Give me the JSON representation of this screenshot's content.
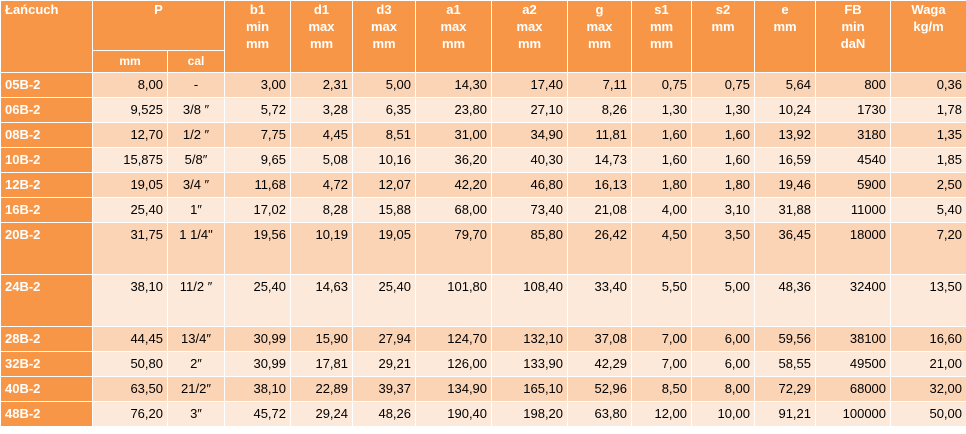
{
  "headers": {
    "chain": "Łańcuch",
    "p": "P",
    "p_mm": "mm",
    "p_cal": "cal",
    "cols": [
      [
        "b1",
        "min",
        "mm"
      ],
      [
        "d1",
        "max",
        "mm"
      ],
      [
        "d3",
        "max",
        "mm"
      ],
      [
        "a1",
        "max",
        "mm"
      ],
      [
        "a2",
        "max",
        "mm"
      ],
      [
        "g",
        "max",
        "mm"
      ],
      [
        "s1",
        "mm",
        "mm"
      ],
      [
        "s2",
        "mm"
      ],
      [
        "e",
        "mm"
      ],
      [
        "FB",
        "min",
        "daN"
      ],
      [
        "Waga",
        "kg/m"
      ]
    ]
  },
  "rows": [
    {
      "chain": "05B-2",
      "p_mm": "8,00",
      "p_cal": "-",
      "b1": "3,00",
      "d1": "2,31",
      "d3": "5,00",
      "a1": "14,30",
      "a2": "17,40",
      "g": "7,11",
      "s1": "0,75",
      "s2": "0,75",
      "e": "5,64",
      "fb": "800",
      "waga": "0,36"
    },
    {
      "chain": "06B-2",
      "p_mm": "9,525",
      "p_cal": "3/8 ″",
      "b1": "5,72",
      "d1": "3,28",
      "d3": "6,35",
      "a1": "23,80",
      "a2": "27,10",
      "g": "8,26",
      "s1": "1,30",
      "s2": "1,30",
      "e": "10,24",
      "fb": "1730",
      "waga": "1,78"
    },
    {
      "chain": "08B-2",
      "p_mm": "12,70",
      "p_cal": "1/2 ″",
      "b1": "7,75",
      "d1": "4,45",
      "d3": "8,51",
      "a1": "31,00",
      "a2": "34,90",
      "g": "11,81",
      "s1": "1,60",
      "s2": "1,60",
      "e": "13,92",
      "fb": "3180",
      "waga": "1,35"
    },
    {
      "chain": "10B-2",
      "p_mm": "15,875",
      "p_cal": "5/8″",
      "b1": "9,65",
      "d1": "5,08",
      "d3": "10,16",
      "a1": "36,20",
      "a2": "40,30",
      "g": "14,73",
      "s1": "1,60",
      "s2": "1,60",
      "e": "16,59",
      "fb": "4540",
      "waga": "1,85"
    },
    {
      "chain": "12B-2",
      "p_mm": "19,05",
      "p_cal": "3/4 ″",
      "b1": "11,68",
      "d1": "4,72",
      "d3": "12,07",
      "a1": "42,20",
      "a2": "46,80",
      "g": "16,13",
      "s1": "1,80",
      "s2": "1,80",
      "e": "19,46",
      "fb": "5900",
      "waga": "2,50"
    },
    {
      "chain": "16B-2",
      "p_mm": "25,40",
      "p_cal": "1″",
      "b1": "17,02",
      "d1": "8,28",
      "d3": "15,88",
      "a1": "68,00",
      "a2": "73,40",
      "g": "21,08",
      "s1": "4,00",
      "s2": "3,10",
      "e": "31,88",
      "fb": "11000",
      "waga": "5,40"
    },
    {
      "chain": "20B-2",
      "p_mm": "31,75",
      "p_cal": "1 1/4\"",
      "b1": "19,56",
      "d1": "10,19",
      "d3": "19,05",
      "a1": "79,70",
      "a2": "85,80",
      "g": "26,42",
      "s1": "4,50",
      "s2": "3,50",
      "e": "36,45",
      "fb": "18000",
      "waga": "7,20"
    },
    {
      "chain": "24B-2",
      "p_mm": "38,10",
      "p_cal": "11/2 ″",
      "b1": "25,40",
      "d1": "14,63",
      "d3": "25,40",
      "a1": "101,80",
      "a2": "108,40",
      "g": "33,40",
      "s1": "5,50",
      "s2": "5,00",
      "e": "48,36",
      "fb": "32400",
      "waga": "13,50"
    },
    {
      "chain": "28B-2",
      "p_mm": "44,45",
      "p_cal": "13/4″",
      "b1": "30,99",
      "d1": "15,90",
      "d3": "27,94",
      "a1": "124,70",
      "a2": "132,10",
      "g": "37,08",
      "s1": "7,00",
      "s2": "6,00",
      "e": "59,56",
      "fb": "38100",
      "waga": "16,60"
    },
    {
      "chain": "32B-2",
      "p_mm": "50,80",
      "p_cal": "2″",
      "b1": "30,99",
      "d1": "17,81",
      "d3": "29,21",
      "a1": "126,00",
      "a2": "133,90",
      "g": "42,29",
      "s1": "7,00",
      "s2": "6,00",
      "e": "58,55",
      "fb": "49500",
      "waga": "21,00"
    },
    {
      "chain": "40B-2",
      "p_mm": "63,50",
      "p_cal": "21/2″",
      "b1": "38,10",
      "d1": "22,89",
      "d3": "39,37",
      "a1": "134,90",
      "a2": "165,10",
      "g": "52,96",
      "s1": "8,50",
      "s2": "8,00",
      "e": "72,29",
      "fb": "68000",
      "waga": "32,00"
    },
    {
      "chain": "48B-2",
      "p_mm": "76,20",
      "p_cal": "3″",
      "b1": "45,72",
      "d1": "29,24",
      "d3": "48,26",
      "a1": "190,40",
      "a2": "198,20",
      "g": "63,80",
      "s1": "12,00",
      "s2": "10,00",
      "e": "91,21",
      "fb": "100000",
      "waga": "50,00"
    }
  ],
  "colors": {
    "header_orange": "#f79646",
    "row_dark": "#fbd3b5",
    "row_light": "#fde9d9",
    "divider": "#ffffff"
  }
}
